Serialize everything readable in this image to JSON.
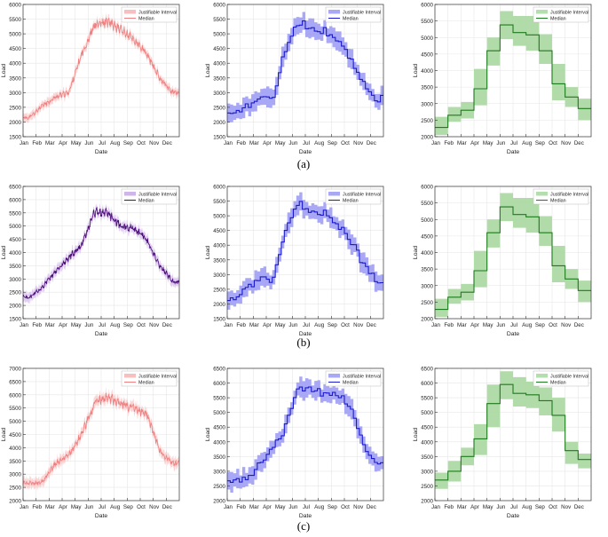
{
  "figure": {
    "row_labels": [
      "(a)",
      "(b)",
      "(c)"
    ]
  },
  "chart_data": [
    {
      "id": "a1",
      "type": "area",
      "row": 0,
      "col": 0,
      "style": "daily",
      "color": "#f08080",
      "band_color": "#f5b5b5",
      "xlabel": "Date",
      "ylabel": "Load",
      "ylim": [
        1500,
        6000
      ],
      "yticks": [
        1500,
        2000,
        2500,
        3000,
        3500,
        4000,
        4500,
        5000,
        5500,
        6000
      ],
      "xtick_labels": [
        "Jan",
        "Feb",
        "Mar",
        "Apr",
        "May",
        "Jun",
        "Jul",
        "Aug",
        "Sep",
        "Oct",
        "Nov",
        "Dec"
      ],
      "legend": {
        "position": "top-right",
        "entries": [
          "Justifiable Interval",
          "Median"
        ]
      },
      "median_monthly": [
        2150,
        2550,
        2850,
        3000,
        4300,
        5300,
        5400,
        5150,
        4800,
        4300,
        3500,
        3000
      ],
      "band_halfwidth": 150
    },
    {
      "id": "a2",
      "type": "area",
      "row": 0,
      "col": 1,
      "style": "weekly",
      "color": "#1a1ad0",
      "band_color": "#9999f5",
      "xlabel": "Date",
      "ylabel": "Load",
      "ylim": [
        1500,
        6000
      ],
      "yticks": [
        1500,
        2000,
        2500,
        3000,
        3500,
        4000,
        4500,
        5000,
        5500,
        6000
      ],
      "xtick_labels": [
        "Jan",
        "Feb",
        "Mar",
        "Apr",
        "May",
        "Jun",
        "Jul",
        "Aug",
        "Sep",
        "Oct",
        "Nov",
        "Dec"
      ],
      "legend": {
        "position": "top-right",
        "entries": [
          "Justifiable Interval",
          "Median"
        ]
      },
      "median_monthly": [
        2200,
        2500,
        2800,
        2800,
        4500,
        5400,
        5200,
        5100,
        4700,
        4200,
        3300,
        2800
      ],
      "band_halfwidth": 300
    },
    {
      "id": "a3",
      "type": "area",
      "row": 0,
      "col": 2,
      "style": "monthly",
      "color": "#1e7a1e",
      "band_color": "#a8d8a0",
      "xlabel": "Date",
      "ylabel": "Load",
      "ylim": [
        2000,
        6000
      ],
      "yticks": [
        2000,
        2500,
        3000,
        3500,
        4000,
        4500,
        5000,
        5500,
        6000
      ],
      "xtick_labels": [
        "Jan",
        "Feb",
        "Mar",
        "Apr",
        "May",
        "Jun",
        "Jul",
        "Aug",
        "Sep",
        "Oct",
        "Nov",
        "Dec"
      ],
      "legend": {
        "position": "top-right",
        "entries": [
          "Justifiable Interval",
          "Median"
        ]
      },
      "steps": [
        {
          "median": 2280,
          "low": 2050,
          "high": 2600
        },
        {
          "median": 2650,
          "low": 2450,
          "high": 2900
        },
        {
          "median": 2800,
          "low": 2550,
          "high": 3050
        },
        {
          "median": 3450,
          "low": 2950,
          "high": 4050
        },
        {
          "median": 4600,
          "low": 4150,
          "high": 5000
        },
        {
          "median": 5380,
          "low": 4950,
          "high": 5800
        },
        {
          "median": 5150,
          "low": 4750,
          "high": 5650
        },
        {
          "median": 5080,
          "low": 4600,
          "high": 5650
        },
        {
          "median": 4600,
          "low": 4200,
          "high": 5100
        },
        {
          "median": 3600,
          "low": 3100,
          "high": 4200
        },
        {
          "median": 3200,
          "low": 2900,
          "high": 3500
        },
        {
          "median": 2850,
          "low": 2500,
          "high": 3150
        }
      ]
    },
    {
      "id": "b1",
      "type": "area",
      "row": 1,
      "col": 0,
      "style": "daily",
      "color": "#4b0a7a",
      "band_color": "#c8a8e8",
      "xlabel": "Date",
      "ylabel": "Load",
      "ylim": [
        1500,
        6500
      ],
      "yticks": [
        1500,
        2000,
        2500,
        3000,
        3500,
        4000,
        4500,
        5000,
        5500,
        6000,
        6500
      ],
      "xtick_labels": [
        "Jan",
        "Feb",
        "Mar",
        "Apr",
        "May",
        "Jun",
        "Jul",
        "Aug",
        "Sep",
        "Oct",
        "Nov",
        "Dec"
      ],
      "legend": {
        "position": "top-right",
        "entries": [
          "Justifiable Interval",
          "Median"
        ]
      },
      "median_monthly": [
        2300,
        2700,
        3300,
        3800,
        4300,
        5500,
        5500,
        5000,
        4900,
        4500,
        3500,
        2900
      ],
      "band_halfwidth": 200
    },
    {
      "id": "b2",
      "type": "area",
      "row": 1,
      "col": 1,
      "style": "weekly",
      "color": "#1a1ad0",
      "band_color": "#9999f5",
      "xlabel": "Date",
      "ylabel": "Load",
      "ylim": [
        1500,
        6000
      ],
      "yticks": [
        1500,
        2000,
        2500,
        3000,
        3500,
        4000,
        4500,
        5000,
        5500,
        6000
      ],
      "xtick_labels": [
        "Jan",
        "Feb",
        "Mar",
        "Apr",
        "May",
        "Jun",
        "Jul",
        "Aug",
        "Sep",
        "Oct",
        "Nov",
        "Dec"
      ],
      "legend": {
        "position": "top-right",
        "entries": [
          "Justifiable Interval",
          "Median"
        ]
      },
      "median_monthly": [
        2200,
        2500,
        2800,
        2800,
        4500,
        5400,
        5200,
        5100,
        4700,
        4200,
        3300,
        2800
      ],
      "band_halfwidth": 300
    },
    {
      "id": "b3",
      "type": "area",
      "row": 1,
      "col": 2,
      "style": "monthly",
      "color": "#1e7a1e",
      "band_color": "#a8d8a0",
      "xlabel": "Date",
      "ylabel": "Load",
      "ylim": [
        2000,
        6000
      ],
      "yticks": [
        2000,
        2500,
        3000,
        3500,
        4000,
        4500,
        5000,
        5500,
        6000
      ],
      "xtick_labels": [
        "Jan",
        "Feb",
        "Mar",
        "Apr",
        "May",
        "Jun",
        "Jul",
        "Aug",
        "Sep",
        "Oct",
        "Nov",
        "Dec"
      ],
      "legend": {
        "position": "top-right",
        "entries": [
          "Justifiable Interval",
          "Median"
        ]
      },
      "steps": [
        {
          "median": 2280,
          "low": 2050,
          "high": 2600
        },
        {
          "median": 2650,
          "low": 2450,
          "high": 2900
        },
        {
          "median": 2800,
          "low": 2550,
          "high": 3050
        },
        {
          "median": 3450,
          "low": 2950,
          "high": 4050
        },
        {
          "median": 4600,
          "low": 4150,
          "high": 5000
        },
        {
          "median": 5380,
          "low": 4950,
          "high": 5800
        },
        {
          "median": 5150,
          "low": 4750,
          "high": 5650
        },
        {
          "median": 5080,
          "low": 4600,
          "high": 5650
        },
        {
          "median": 4600,
          "low": 4200,
          "high": 5100
        },
        {
          "median": 3600,
          "low": 3100,
          "high": 4200
        },
        {
          "median": 3200,
          "low": 2900,
          "high": 3500
        },
        {
          "median": 2850,
          "low": 2500,
          "high": 3150
        }
      ]
    },
    {
      "id": "c1",
      "type": "area",
      "row": 2,
      "col": 0,
      "style": "daily",
      "color": "#f08080",
      "band_color": "#f5b5b5",
      "xlabel": "Date",
      "ylabel": "Load",
      "ylim": [
        2000,
        7000
      ],
      "yticks": [
        2000,
        2500,
        3000,
        3500,
        4000,
        4500,
        5000,
        5500,
        6000,
        6500,
        7000
      ],
      "xtick_labels": [
        "Jan",
        "Feb",
        "Mar",
        "Apr",
        "May",
        "Jun",
        "Jul",
        "Aug",
        "Sep",
        "Oct",
        "Nov",
        "Dec"
      ],
      "legend": {
        "position": "top-right",
        "entries": [
          "Justifiable Interval",
          "Median"
        ]
      },
      "median_monthly": [
        2650,
        2700,
        3400,
        3700,
        4500,
        5700,
        5900,
        5700,
        5500,
        5300,
        3900,
        3400
      ],
      "band_halfwidth": 200
    },
    {
      "id": "c2",
      "type": "area",
      "row": 2,
      "col": 1,
      "style": "weekly",
      "color": "#1a1ad0",
      "band_color": "#9999f5",
      "xlabel": "Date",
      "ylabel": "Load",
      "ylim": [
        2000,
        6500
      ],
      "yticks": [
        2000,
        2500,
        3000,
        3500,
        4000,
        4500,
        5000,
        5500,
        6000,
        6500
      ],
      "xtick_labels": [
        "Jan",
        "Feb",
        "Mar",
        "Apr",
        "May",
        "Jun",
        "Jul",
        "Aug",
        "Sep",
        "Oct",
        "Nov",
        "Dec"
      ],
      "legend": {
        "position": "top-right",
        "entries": [
          "Justifiable Interval",
          "Median"
        ]
      },
      "median_monthly": [
        2700,
        2700,
        3300,
        3700,
        4500,
        5800,
        5800,
        5600,
        5600,
        5200,
        3800,
        3300
      ],
      "band_halfwidth": 300
    },
    {
      "id": "c3",
      "type": "area",
      "row": 2,
      "col": 2,
      "style": "monthly",
      "color": "#1e7a1e",
      "band_color": "#a8d8a0",
      "xlabel": "Date",
      "ylabel": "Load",
      "ylim": [
        2000,
        6500
      ],
      "yticks": [
        2000,
        2500,
        3000,
        3500,
        4000,
        4500,
        5000,
        5500,
        6000,
        6500
      ],
      "xtick_labels": [
        "Jan",
        "Feb",
        "Mar",
        "Apr",
        "May",
        "Jun",
        "Jul",
        "Aug",
        "Sep",
        "Oct",
        "Nov",
        "Dec"
      ],
      "legend": {
        "position": "top-right",
        "entries": [
          "Justifiable Interval",
          "Median"
        ]
      },
      "steps": [
        {
          "median": 2700,
          "low": 2400,
          "high": 2950
        },
        {
          "median": 3000,
          "low": 2650,
          "high": 3350
        },
        {
          "median": 3500,
          "low": 3200,
          "high": 3800
        },
        {
          "median": 4100,
          "low": 3550,
          "high": 4600
        },
        {
          "median": 5300,
          "low": 4500,
          "high": 5950
        },
        {
          "median": 5950,
          "low": 5450,
          "high": 6400
        },
        {
          "median": 5650,
          "low": 5200,
          "high": 6200
        },
        {
          "median": 5600,
          "low": 5150,
          "high": 6050
        },
        {
          "median": 5400,
          "low": 4900,
          "high": 5850
        },
        {
          "median": 4900,
          "low": 4350,
          "high": 5500
        },
        {
          "median": 3700,
          "low": 3250,
          "high": 4000
        },
        {
          "median": 3400,
          "low": 3100,
          "high": 3600
        }
      ]
    }
  ]
}
